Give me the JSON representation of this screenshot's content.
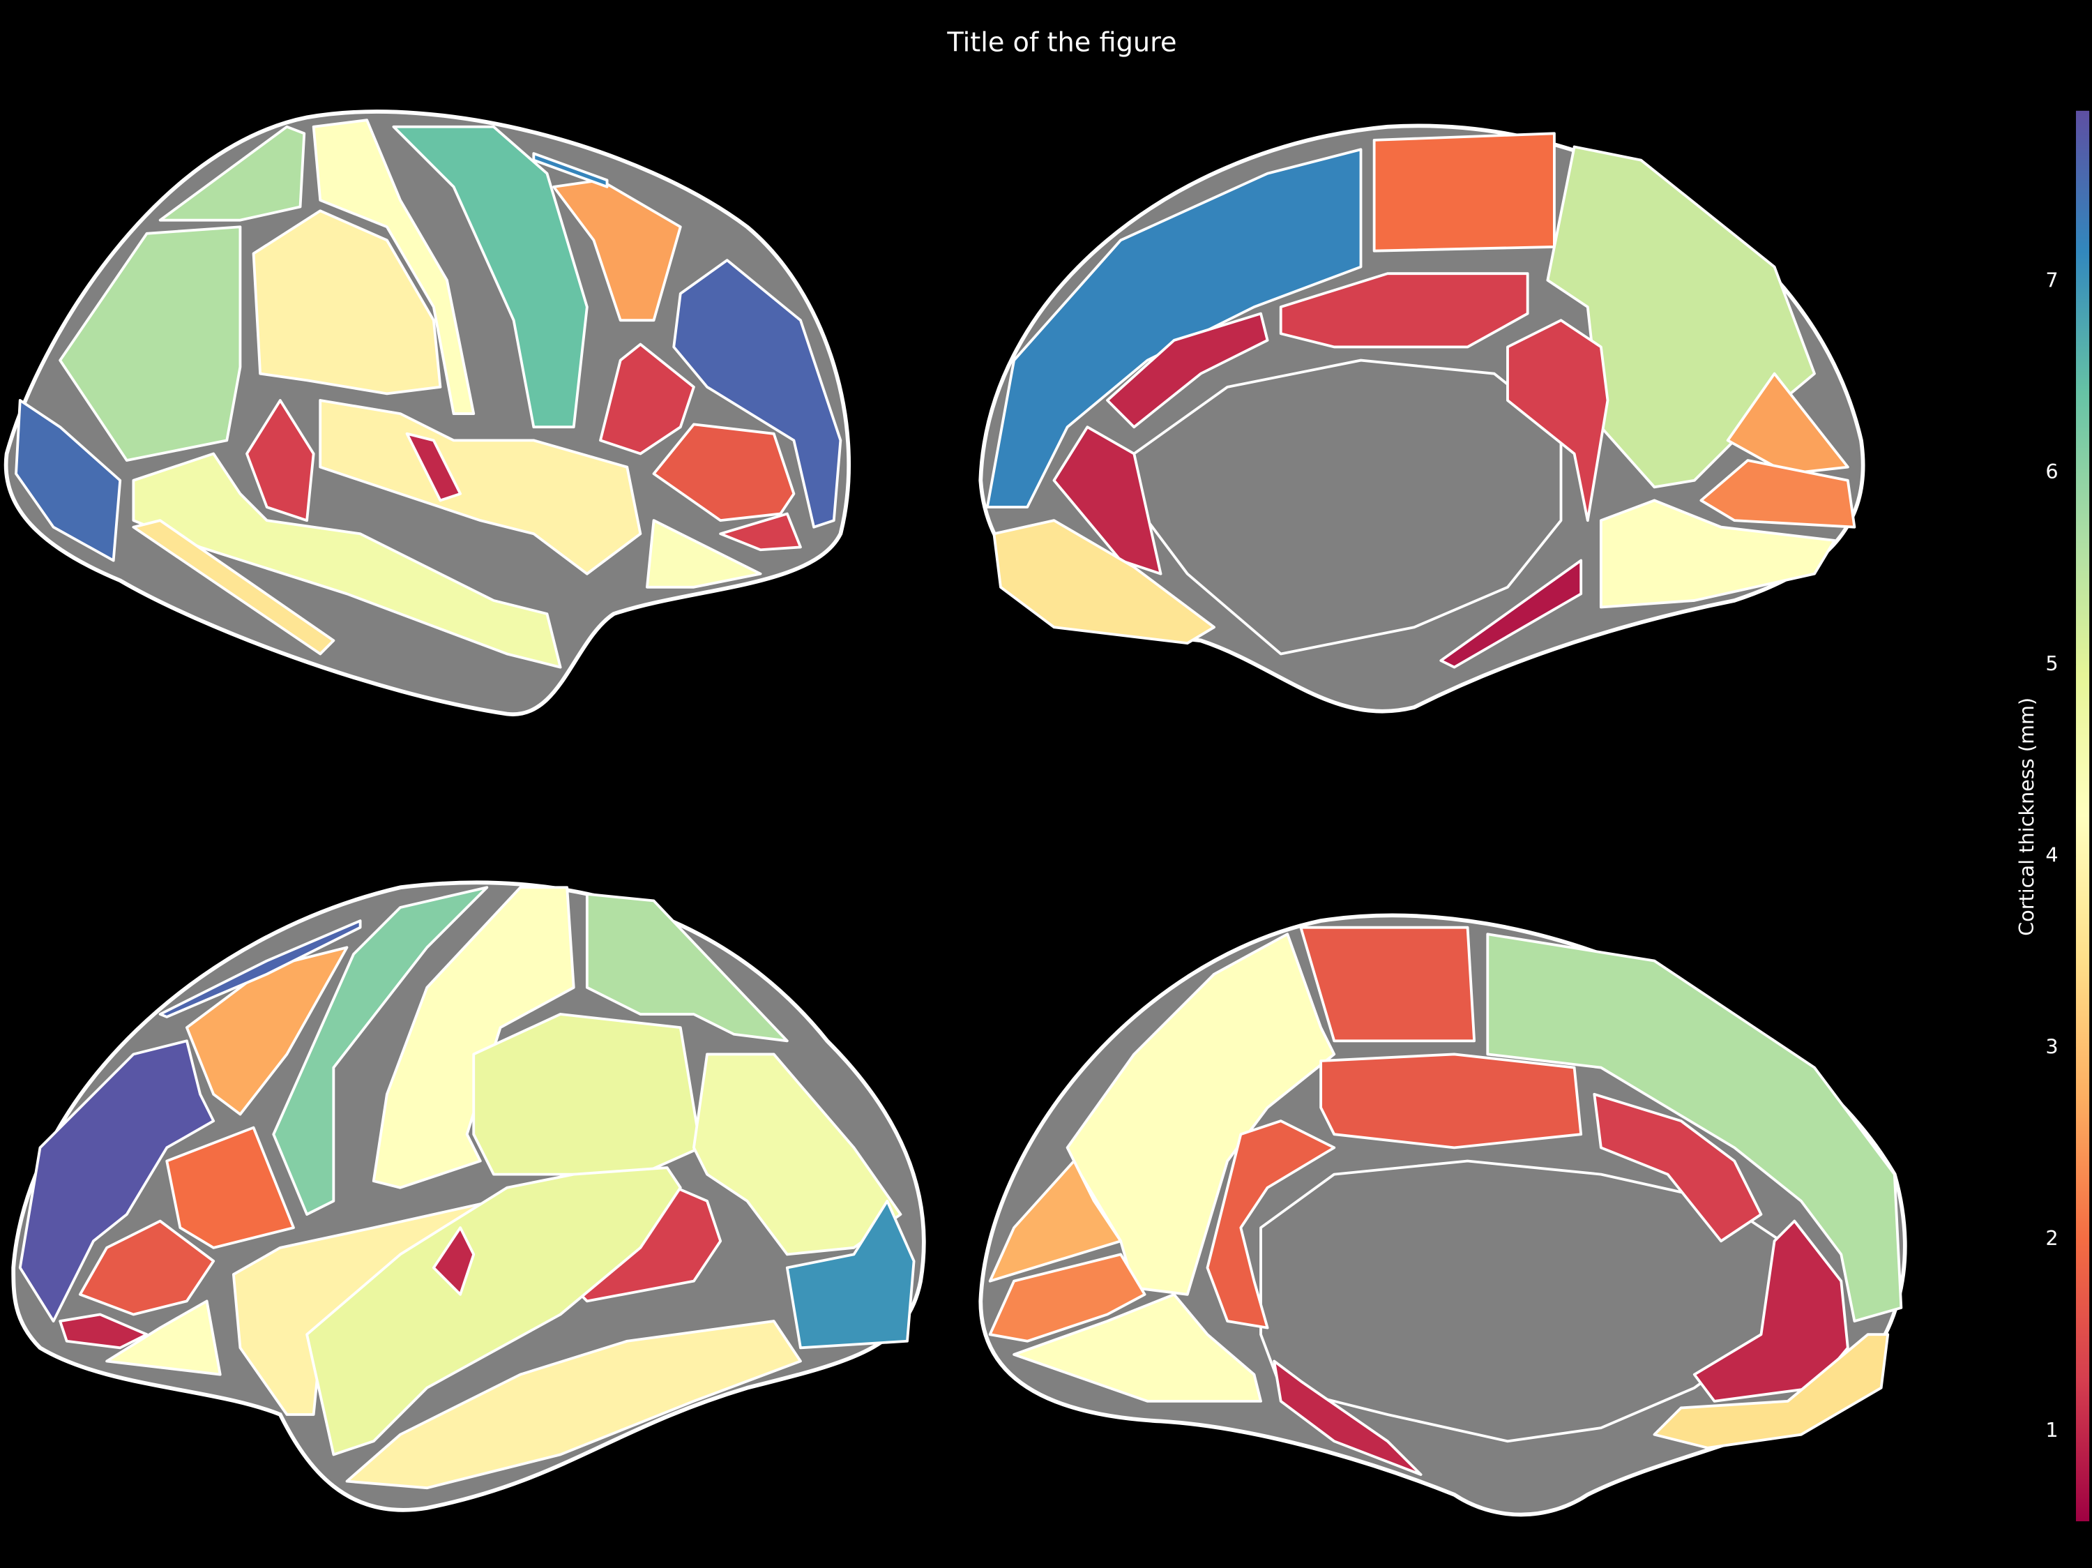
{
  "chart_data": {
    "type": "brain",
    "title": "Title of the figure",
    "colorbar_label": "Cortical thickness (mm)",
    "colormap": "Spectral",
    "clim": [
      0.53,
      7.89
    ],
    "cticks": [
      1,
      2,
      3,
      4,
      5,
      6,
      7
    ],
    "views": [
      {
        "values": [
          7.5,
          5.6,
          5.6,
          4.2,
          3.9,
          6.4,
          2.6,
          7.6,
          1.3,
          1.3,
          1.7,
          1.3,
          4.6,
          3.9,
          3.6,
          1.0,
          4.3,
          7.2
        ]
      },
      {
        "values": [
          7.2,
          2.0,
          5.3,
          1.3,
          1.0,
          1.3,
          2.6,
          2.3,
          4.2,
          1.0,
          3.6,
          0.8
        ]
      },
      {
        "values": [
          7.8,
          2.7,
          6.1,
          4.2,
          5.6,
          4.8,
          4.6,
          2.0,
          1.7,
          1.0,
          4.2,
          7.0,
          1.3,
          3.9,
          4.8,
          3.9,
          1.0,
          7.6
        ]
      },
      {
        "values": [
          4.2,
          1.7,
          5.6,
          1.7,
          1.3,
          1.8,
          1.0,
          2.8,
          2.3,
          4.2,
          3.5,
          1.0
        ]
      }
    ]
  }
}
